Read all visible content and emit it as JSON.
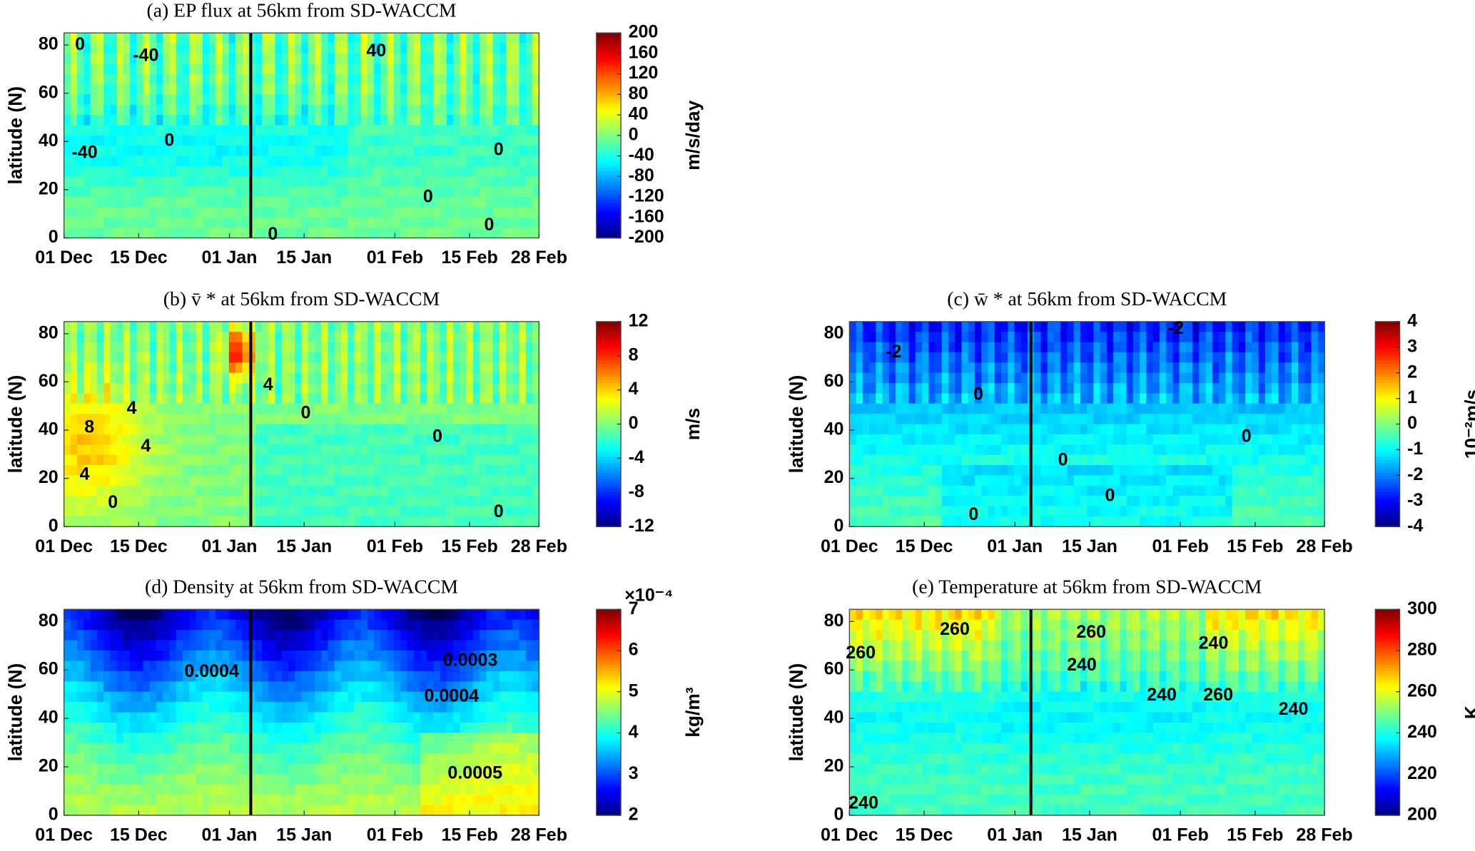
{
  "chart_data": [
    {
      "type": "contour",
      "title": "(a) EP flux at 56km from SD-WACCM",
      "ylabel": "latitude (N)",
      "categories": [
        "01 Dec",
        "15 Dec",
        "01 Jan",
        "15 Jan",
        "01 Feb",
        "15 Feb",
        "28 Feb"
      ],
      "ylim": [
        0,
        85
      ],
      "yticks": [
        0,
        20,
        40,
        60,
        80
      ],
      "clim": [
        -200,
        200
      ],
      "cticks": [
        -200,
        -160,
        -120,
        -80,
        -40,
        0,
        40,
        80,
        120,
        160,
        200
      ],
      "clabel": "m/s/day",
      "contour_labels": [
        "-40",
        "40",
        "0",
        "0",
        "0",
        "0",
        "0",
        "0",
        "-40"
      ]
    },
    {
      "type": "contour",
      "title": "(b) v̄ * at 56km from SD-WACCM",
      "ylabel": "latitude (N)",
      "categories": [
        "01 Dec",
        "15 Dec",
        "01 Jan",
        "15 Jan",
        "01 Feb",
        "15 Feb",
        "28 Feb"
      ],
      "ylim": [
        0,
        85
      ],
      "yticks": [
        0,
        20,
        40,
        60,
        80
      ],
      "clim": [
        -12,
        12
      ],
      "cticks": [
        -12,
        -8,
        -4,
        0,
        4,
        8,
        12
      ],
      "clabel": "m/s",
      "contour_labels": [
        "8",
        "4",
        "4",
        "4",
        "4",
        "0",
        "0",
        "0",
        "0"
      ]
    },
    {
      "type": "contour",
      "title": "(c) w̄ * at 56km from SD-WACCM",
      "ylabel": "latitude (N)",
      "categories": [
        "01 Dec",
        "15 Dec",
        "01 Jan",
        "15 Jan",
        "01 Feb",
        "15 Feb",
        "28 Feb"
      ],
      "ylim": [
        0,
        85
      ],
      "yticks": [
        0,
        20,
        40,
        60,
        80
      ],
      "clim": [
        -4,
        4
      ],
      "cticks": [
        -4,
        -3,
        -2,
        -1,
        0,
        1,
        2,
        3,
        4
      ],
      "clabel": "10⁻²m/s",
      "contour_labels": [
        "-2",
        "-2",
        "0",
        "0",
        "0",
        "0",
        "0"
      ]
    },
    {
      "type": "contour",
      "title": "(d) Density at 56km from SD-WACCM",
      "ylabel": "latitude (N)",
      "categories": [
        "01 Dec",
        "15 Dec",
        "01 Jan",
        "15 Jan",
        "01 Feb",
        "15 Feb",
        "28 Feb"
      ],
      "ylim": [
        0,
        85
      ],
      "yticks": [
        0,
        20,
        40,
        60,
        80
      ],
      "clim": [
        2,
        7
      ],
      "cticks": [
        2,
        3,
        4,
        5,
        6,
        7
      ],
      "clabel": "kg/m³",
      "cmultiplier": "×10⁻⁴",
      "contour_labels": [
        "0.0004",
        "0.0003",
        "0.0004",
        "0.0005"
      ]
    },
    {
      "type": "contour",
      "title": "(e) Temperature at 56km from SD-WACCM",
      "ylabel": "latitude (N)",
      "categories": [
        "01 Dec",
        "15 Dec",
        "01 Jan",
        "15 Jan",
        "01 Feb",
        "15 Feb",
        "28 Feb"
      ],
      "ylim": [
        0,
        85
      ],
      "yticks": [
        0,
        20,
        40,
        60,
        80
      ],
      "clim": [
        200,
        300
      ],
      "cticks": [
        200,
        220,
        240,
        260,
        280,
        300
      ],
      "clabel": "K",
      "contour_labels": [
        "260",
        "260",
        "260",
        "240",
        "240",
        "240",
        "260",
        "240",
        "240"
      ]
    }
  ]
}
